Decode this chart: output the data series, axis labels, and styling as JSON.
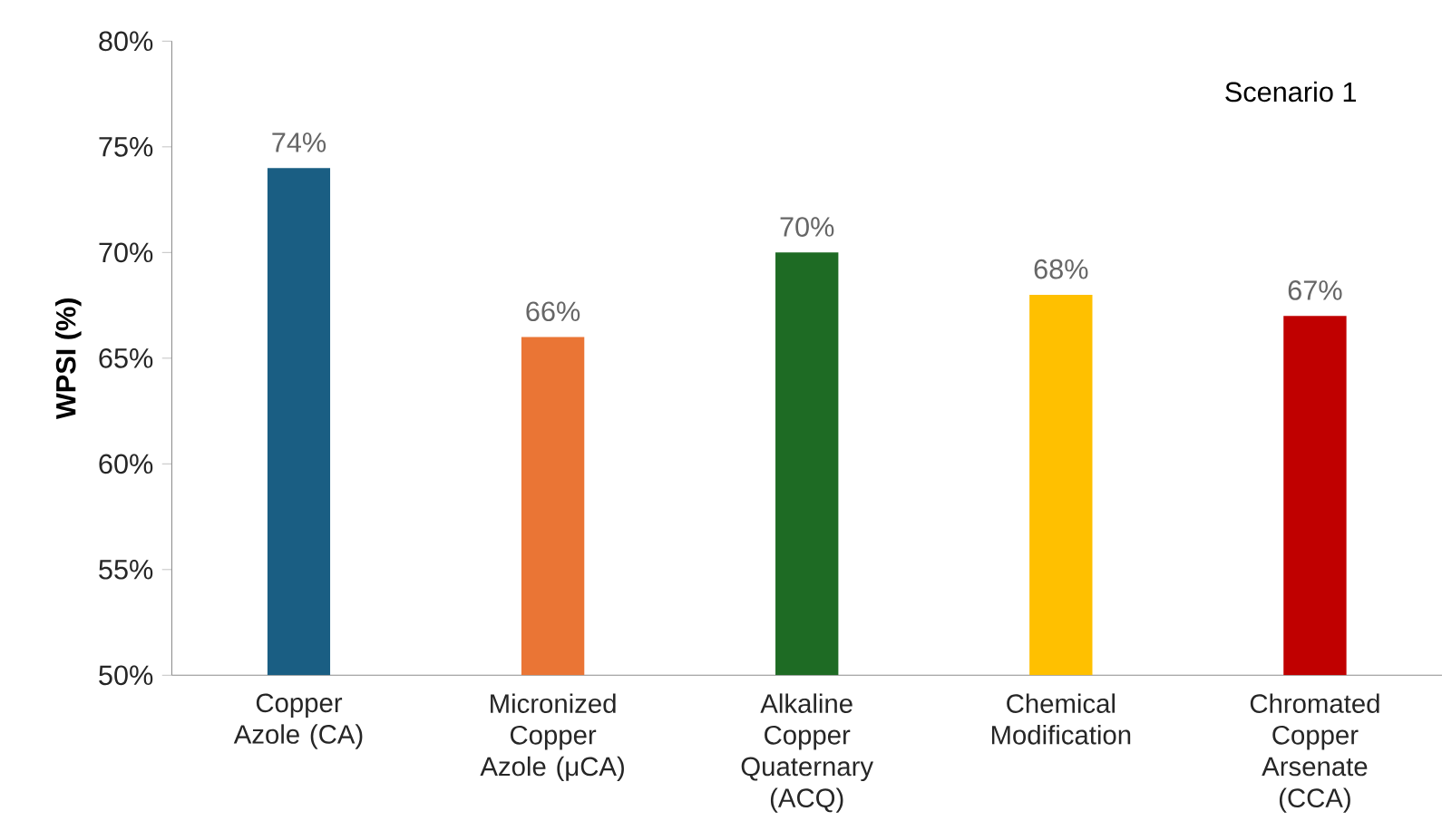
{
  "chart_data": {
    "type": "bar",
    "ylabel": "WPSI (%)",
    "categories": [
      "Copper Azole (CA)",
      "Micronized Copper Azole (μCA)",
      "Alkaline Copper Quaternary (ACQ)",
      "Chemical Modification",
      "Chromated Copper Arsenate (CCA)"
    ],
    "values": [
      74,
      66,
      70,
      68,
      67
    ],
    "value_labels": [
      "74%",
      "66%",
      "70%",
      "68%",
      "67%"
    ],
    "colors": [
      "#1a5e83",
      "#ea7535",
      "#1e6b24",
      "#ffc000",
      "#c00000"
    ],
    "ylim": [
      50,
      80
    ],
    "yticks": [
      {
        "value": 50,
        "label": "50%"
      },
      {
        "value": 55,
        "label": "55%"
      },
      {
        "value": 60,
        "label": "60%"
      },
      {
        "value": 65,
        "label": "65%"
      },
      {
        "value": 70,
        "label": "70%"
      },
      {
        "value": 75,
        "label": "75%"
      },
      {
        "value": 80,
        "label": "80%"
      }
    ],
    "annotations": [
      "Scenario 1"
    ],
    "grid": false
  }
}
